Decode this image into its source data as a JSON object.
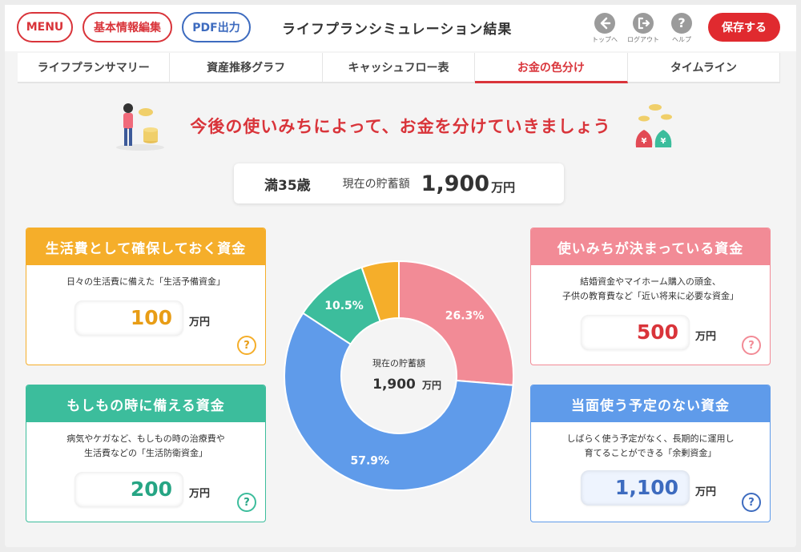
{
  "header": {
    "menu_label": "MENU",
    "basic_info_label": "基本情報編集",
    "pdf_label": "PDF出力",
    "title": "ライフプランシミュレーション結果",
    "top_label": "トップへ",
    "logout_label": "ログアウト",
    "help_label": "ヘルプ",
    "help_glyph": "?",
    "save_label": "保存する"
  },
  "tabs": [
    {
      "label": "ライフプランサマリー",
      "active": false
    },
    {
      "label": "資産推移グラフ",
      "active": false
    },
    {
      "label": "キャッシュフロー表",
      "active": false
    },
    {
      "label": "お金の色分け",
      "active": true
    },
    {
      "label": "タイムライン",
      "active": false
    }
  ],
  "banner": {
    "text": "今後の使いみちによって、お金を分けていきましょう"
  },
  "summary": {
    "age": "満35歳",
    "savings_label": "現在の貯蓄額",
    "savings_value": "1,900",
    "unit": "万円"
  },
  "cards": {
    "living": {
      "title": "生活費として確保しておく資金",
      "desc": [
        "日々の生活費に備えた「生活予備資金」"
      ],
      "value": "100",
      "unit": "万円",
      "color": "#f5ae2a"
    },
    "emergency": {
      "title": "もしもの時に備える資金",
      "desc": [
        "病気やケガなど、もしもの時の治療費や",
        "生活費などの「生活防衛資金」"
      ],
      "value": "200",
      "unit": "万円",
      "color": "#3cbd9c"
    },
    "planned": {
      "title": "使いみちが決まっている資金",
      "desc": [
        "結婚資金やマイホーム購入の頭金、",
        "子供の教育費など「近い将来に必要な資金」"
      ],
      "value": "500",
      "unit": "万円",
      "color": "#f28b96"
    },
    "surplus": {
      "title": "当面使う予定のない資金",
      "desc": [
        "しばらく使う予定がなく、長期的に運用し",
        "育てることができる「余剰資金」"
      ],
      "value": "1,100",
      "unit": "万円",
      "color": "#5f9bea"
    },
    "help_glyph": "?"
  },
  "chart_data": {
    "type": "pie",
    "categories": [
      "使いみちが決まっている資金",
      "当面使う予定のない資金",
      "もしもの時に備える資金",
      "生活費として確保しておく資金"
    ],
    "values": [
      500,
      1100,
      200,
      100
    ],
    "labels": [
      "26.3%",
      "57.9%",
      "10.5%",
      ""
    ],
    "colors": [
      "#f28b96",
      "#5f9bea",
      "#3cbd9c",
      "#f5ae2a"
    ],
    "center_label": "現在の貯蓄額",
    "center_value": "1,900",
    "center_unit": "万円"
  }
}
